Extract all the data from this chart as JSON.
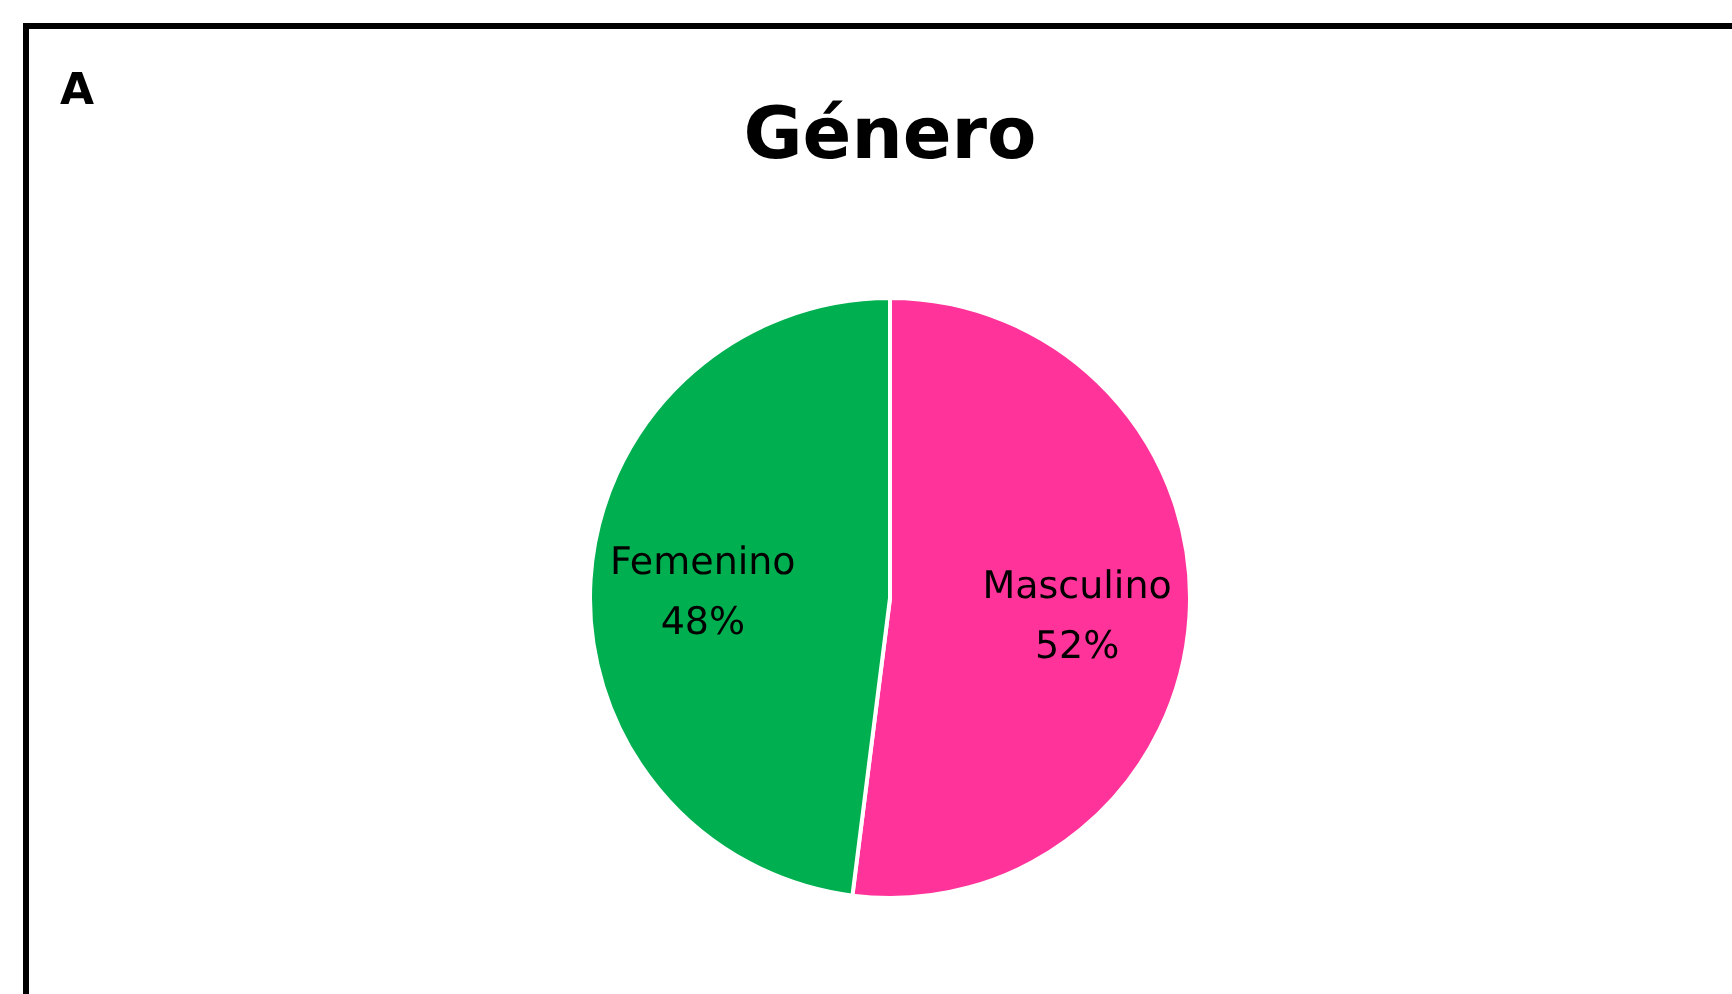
{
  "chart_data": {
    "type": "pie",
    "title": "Género",
    "annotations": [
      "A"
    ],
    "categories": [
      "Masculino",
      "Femenino"
    ],
    "values": [
      52,
      48
    ],
    "value_labels": [
      "52%",
      "48%"
    ],
    "colors": [
      "#ff3399",
      "#00b050"
    ]
  }
}
